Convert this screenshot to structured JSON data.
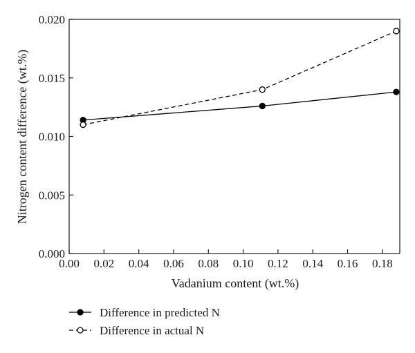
{
  "chart_data": {
    "type": "line",
    "title": "",
    "xlabel": "Vadanium content (wt.%)",
    "ylabel": "Nitrogen content difference (wt.%)",
    "xlim": [
      0.0,
      0.19
    ],
    "ylim": [
      0.0,
      0.02
    ],
    "x_ticks": [
      "0.00",
      "0.02",
      "0.04",
      "0.06",
      "0.08",
      "0.10",
      "0.12",
      "0.14",
      "0.16",
      "0.18"
    ],
    "y_ticks": [
      "0.000",
      "0.005",
      "0.010",
      "0.015",
      "0.020"
    ],
    "grid": false,
    "legend_position": "bottom-left",
    "series": [
      {
        "name": "Difference in predicted N",
        "marker": "filled-circle",
        "line_style": "solid",
        "color": "#000000",
        "x": [
          0.008,
          0.111,
          0.188
        ],
        "y": [
          0.0114,
          0.0126,
          0.0138
        ]
      },
      {
        "name": "Difference in actual N",
        "marker": "open-circle",
        "line_style": "dashed",
        "color": "#000000",
        "x": [
          0.008,
          0.111,
          0.188
        ],
        "y": [
          0.011,
          0.014,
          0.019
        ]
      }
    ]
  }
}
